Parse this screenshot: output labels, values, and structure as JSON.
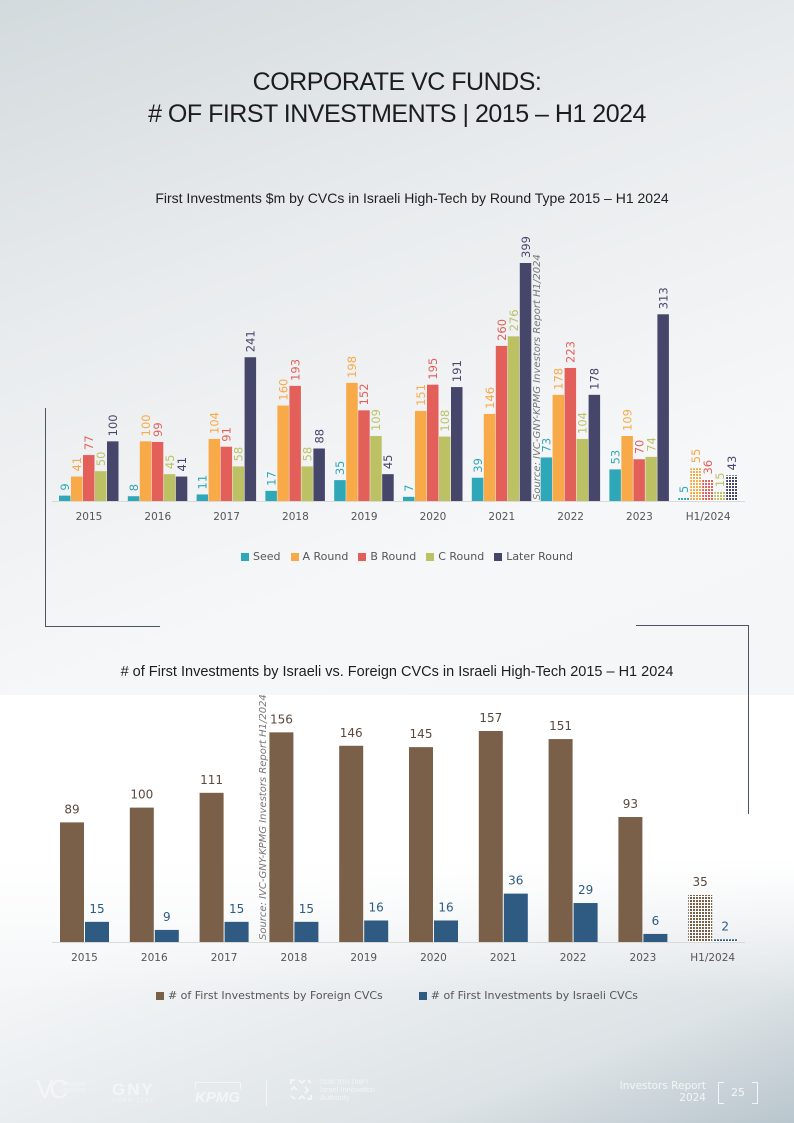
{
  "page": {
    "title_line1": "CORPORATE VC FUNDS:",
    "title_line2": "# OF FIRST INVESTMENTS | 2015 – H1 2024"
  },
  "footer": {
    "logos": [
      "IVC Data and Insights",
      "GNY Gornitzky",
      "KPMG",
      "Israel Innovation Authority"
    ],
    "ivc_text": "DATA AND INSIGHTS",
    "gny_text": "GNY",
    "gny_sub": "GORNITZKY",
    "kpmg_text": "KPMG",
    "iia_hebrew": "רשות החדשנות",
    "iia_line1": "Israel Innovation",
    "iia_line2": "Authority",
    "report_line1": "Investors Report",
    "report_line2": "2024",
    "page_number": "25"
  },
  "colors": {
    "seed": "#2ea8b8",
    "a_round": "#f8a948",
    "b_round": "#e3605a",
    "c_round": "#bcc264",
    "later_round": "#46456a",
    "foreign": "#7b6049",
    "israeli": "#2f5a82"
  },
  "chart_data": [
    {
      "type": "bar",
      "title": "First Investments $m by CVCs in Israeli High-Tech by Round Type 2015 – H1 2024",
      "xlabel": "",
      "ylabel": "",
      "ylim": [
        0,
        400
      ],
      "grid": false,
      "legend_position": "bottom",
      "source_note": "Source: IVC-GNY-KPMG Investors Report H1/2024",
      "categories": [
        "2015",
        "2016",
        "2017",
        "2018",
        "2019",
        "2020",
        "2021",
        "2022",
        "2023",
        "H1/2024"
      ],
      "series": [
        {
          "name": "Seed",
          "values": [
            9,
            8,
            11,
            17,
            35,
            7,
            39,
            73,
            53,
            5
          ]
        },
        {
          "name": "A Round",
          "values": [
            41,
            100,
            104,
            160,
            198,
            151,
            146,
            178,
            109,
            55
          ]
        },
        {
          "name": "B Round",
          "values": [
            77,
            99,
            91,
            193,
            152,
            195,
            260,
            223,
            70,
            36
          ]
        },
        {
          "name": "C Round",
          "values": [
            50,
            45,
            58,
            58,
            109,
            108,
            276,
            104,
            74,
            15
          ]
        },
        {
          "name": "Later Round",
          "values": [
            100,
            41,
            241,
            88,
            45,
            191,
            399,
            178,
            313,
            43
          ]
        }
      ],
      "hatched_categories": [
        "H1/2024"
      ]
    },
    {
      "type": "bar",
      "title": "# of First Investments by Israeli vs. Foreign CVCs in Israeli High-Tech 2015 – H1 2024",
      "xlabel": "",
      "ylabel": "",
      "ylim": [
        0,
        160
      ],
      "grid": false,
      "legend_position": "bottom",
      "source_note": "Source: IVC-GNY-KPMG Investors Report H1/2024",
      "categories": [
        "2015",
        "2016",
        "2017",
        "2018",
        "2019",
        "2020",
        "2021",
        "2022",
        "2023",
        "H1/2024"
      ],
      "series": [
        {
          "name": "# of First Investments by Foreign CVCs",
          "values": [
            89,
            100,
            111,
            156,
            146,
            145,
            157,
            151,
            93,
            35
          ]
        },
        {
          "name": "# of First Investments by Israeli CVCs",
          "values": [
            15,
            9,
            15,
            15,
            16,
            16,
            36,
            29,
            6,
            2
          ]
        }
      ],
      "hatched_categories": [
        "H1/2024"
      ]
    }
  ]
}
